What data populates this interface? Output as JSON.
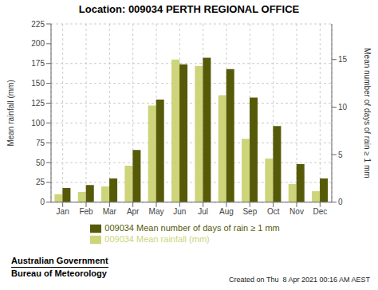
{
  "chart_data": {
    "type": "bar",
    "title": "Location: 009034 PERTH REGIONAL OFFICE",
    "categories": [
      "Jan",
      "Feb",
      "Mar",
      "Apr",
      "May",
      "Jun",
      "Jul",
      "Aug",
      "Sep",
      "Oct",
      "Nov",
      "Dec"
    ],
    "series": [
      {
        "name": "009034 Mean rainfall (mm)",
        "color": "#cdd47a",
        "values": [
          10,
          13,
          20,
          46,
          122,
          180,
          172,
          135,
          80,
          55,
          23,
          14
        ]
      },
      {
        "name": "009034 Mean number of days of rain ≥ 1 mm",
        "color": "#565a08",
        "axis": "y2",
        "values": [
          1.5,
          1.8,
          2.5,
          5.5,
          10.8,
          14.5,
          15.2,
          14.0,
          11.0,
          8.0,
          4.0,
          2.5
        ]
      }
    ],
    "ylabel": "Mean rainfall (mm)",
    "y2label": "Mean number of days of rain ≥ 1 mm",
    "ylim": [
      0,
      225
    ],
    "yticks": [
      0,
      25,
      50,
      75,
      100,
      125,
      150,
      175,
      200,
      225
    ],
    "y2lim": [
      0,
      18.75
    ],
    "y2ticks": [
      0,
      5,
      10,
      15
    ],
    "grid": true,
    "legend": "bottom",
    "annotations": [
      "Australian Government",
      "Bureau of Meteorology",
      "Created on Thu  8 Apr 2021 00:16 AM AEST"
    ]
  }
}
